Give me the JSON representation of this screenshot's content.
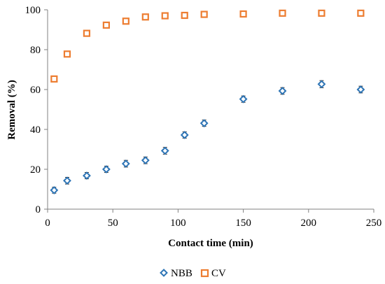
{
  "chart_data": {
    "type": "scatter",
    "title": "",
    "xlabel": "Contact time (min)",
    "ylabel": "Removal (%)",
    "xlim": [
      0,
      250
    ],
    "ylim": [
      0,
      100
    ],
    "xticks": [
      0,
      50,
      100,
      150,
      200,
      250
    ],
    "yticks": [
      0,
      20,
      40,
      60,
      80,
      100
    ],
    "xtick_labels": [
      "0",
      "50",
      "100",
      "150",
      "200",
      "250"
    ],
    "ytick_labels": [
      "0",
      "20",
      "40",
      "60",
      "80",
      "100"
    ],
    "grid": false,
    "legend_position": "bottom",
    "error_bars": true,
    "series": [
      {
        "name": "NBB",
        "marker": "diamond",
        "color": "#2e75b6",
        "x": [
          5,
          15,
          30,
          45,
          60,
          75,
          90,
          105,
          120,
          150,
          180,
          210,
          240
        ],
        "y": [
          9.5,
          14.3,
          16.8,
          20,
          22.8,
          24.5,
          29.3,
          37.2,
          43.1,
          55.2,
          59.3,
          62.7,
          60
        ],
        "err": [
          1.5,
          1.7,
          1.6,
          1.6,
          1.7,
          1.7,
          1.7,
          1.6,
          1.6,
          1.6,
          1.7,
          1.8,
          1.7
        ]
      },
      {
        "name": "CV",
        "marker": "square",
        "color": "#ed7d31",
        "x": [
          5,
          15,
          30,
          45,
          60,
          75,
          90,
          105,
          120,
          150,
          180,
          210,
          240
        ],
        "y": [
          65.3,
          77.8,
          88.2,
          92.3,
          94.3,
          96.4,
          97,
          97.2,
          97.7,
          97.9,
          98.3,
          98.3,
          98.3
        ],
        "err": [
          0.8,
          0.8,
          0.8,
          0.8,
          0.8,
          0.8,
          0.8,
          0.8,
          0.8,
          0.8,
          0.8,
          0.8,
          0.8
        ]
      }
    ]
  },
  "colors": {
    "axis": "#808080",
    "nbb": "#2e75b6",
    "cv": "#ed7d31"
  }
}
